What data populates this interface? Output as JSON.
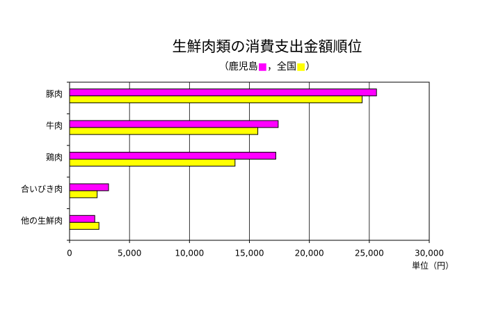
{
  "chart_data": {
    "type": "hbar",
    "title": "生鮮肉類の消費支出金額順位",
    "subtitle": "（鹿児島■，全国■）",
    "categories": [
      "豚肉",
      "牛肉",
      "鶏肉",
      "合いびき肉",
      "他の生鮮肉"
    ],
    "series": [
      {
        "name": "鹿児島",
        "color": "#ff00ff",
        "values": [
          25600,
          17400,
          17200,
          3250,
          2100
        ]
      },
      {
        "name": "全国",
        "color": "#ffff00",
        "values": [
          24400,
          15700,
          13800,
          2300,
          2450
        ]
      }
    ],
    "xlim": [
      0,
      30000
    ],
    "xticks": [
      0,
      {
        "value": 5000,
        "label": "5,000"
      },
      {
        "value": 10000,
        "label": "10,000"
      },
      {
        "value": 15000,
        "label": "15,000"
      },
      {
        "value": 20000,
        "label": "20,000"
      },
      {
        "value": 25000,
        "label": "25,000"
      },
      {
        "value": 30000,
        "label": "30,000"
      }
    ],
    "x_unit": "単位（円）",
    "grid": true
  }
}
